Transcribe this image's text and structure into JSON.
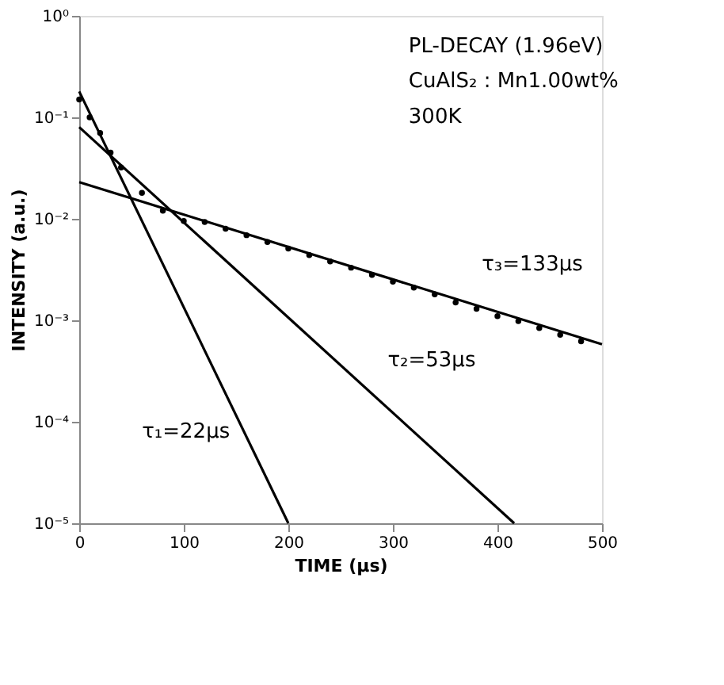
{
  "chart_data": {
    "type": "scatter",
    "xlabel": "TIME (μs)",
    "ylabel": "INTENSITY (a.u.)",
    "log": "y",
    "grid": false,
    "xlim": [
      0,
      500
    ],
    "xticks": [
      0,
      100,
      200,
      300,
      400,
      500
    ],
    "ylim": [
      1e-05,
      1
    ],
    "yticks": [
      {
        "value": 1,
        "label": "10⁰"
      },
      {
        "value": 0.1,
        "label": "10⁻¹"
      },
      {
        "value": 0.01,
        "label": "10⁻²"
      },
      {
        "value": 0.001,
        "label": "10⁻³"
      },
      {
        "value": 0.0001,
        "label": "10⁻⁴"
      },
      {
        "value": 1e-05,
        "label": "10⁻⁵"
      }
    ],
    "series": [
      {
        "marker": "circle",
        "color": "#000000",
        "x": [
          0,
          10,
          20,
          30,
          40,
          60,
          80,
          100,
          120,
          140,
          160,
          180,
          200,
          220,
          240,
          260,
          280,
          300,
          320,
          340,
          360,
          380,
          400,
          420,
          440,
          460,
          480
        ],
        "values": [
          0.15,
          0.1,
          0.07,
          0.045,
          0.032,
          0.018,
          0.012,
          0.0095,
          0.0093,
          0.008,
          0.0069,
          0.0059,
          0.0051,
          0.0044,
          0.0038,
          0.0033,
          0.0028,
          0.0024,
          0.0021,
          0.0018,
          0.0015,
          0.0013,
          0.0011,
          0.00098,
          0.00084,
          0.00072,
          0.00062
        ]
      },
      {
        "type": "line",
        "marker": "none",
        "color": "#000000",
        "x": [
          0,
          200
        ],
        "values": [
          0.18,
          1e-05
        ]
      },
      {
        "type": "line",
        "marker": "none",
        "color": "#000000",
        "x": [
          0,
          416
        ],
        "values": [
          0.08,
          1e-05
        ]
      },
      {
        "type": "line",
        "marker": "none",
        "color": "#000000",
        "x": [
          0,
          500
        ],
        "values": [
          0.023,
          0.00058
        ]
      }
    ],
    "annotations": [
      "PL-DECAY (1.96eV)",
      "CuAlS₂ : Mn1.00wt%",
      "300K",
      "τ₃=133μs",
      "τ₂=53μs",
      "τ₁=22μs"
    ]
  }
}
